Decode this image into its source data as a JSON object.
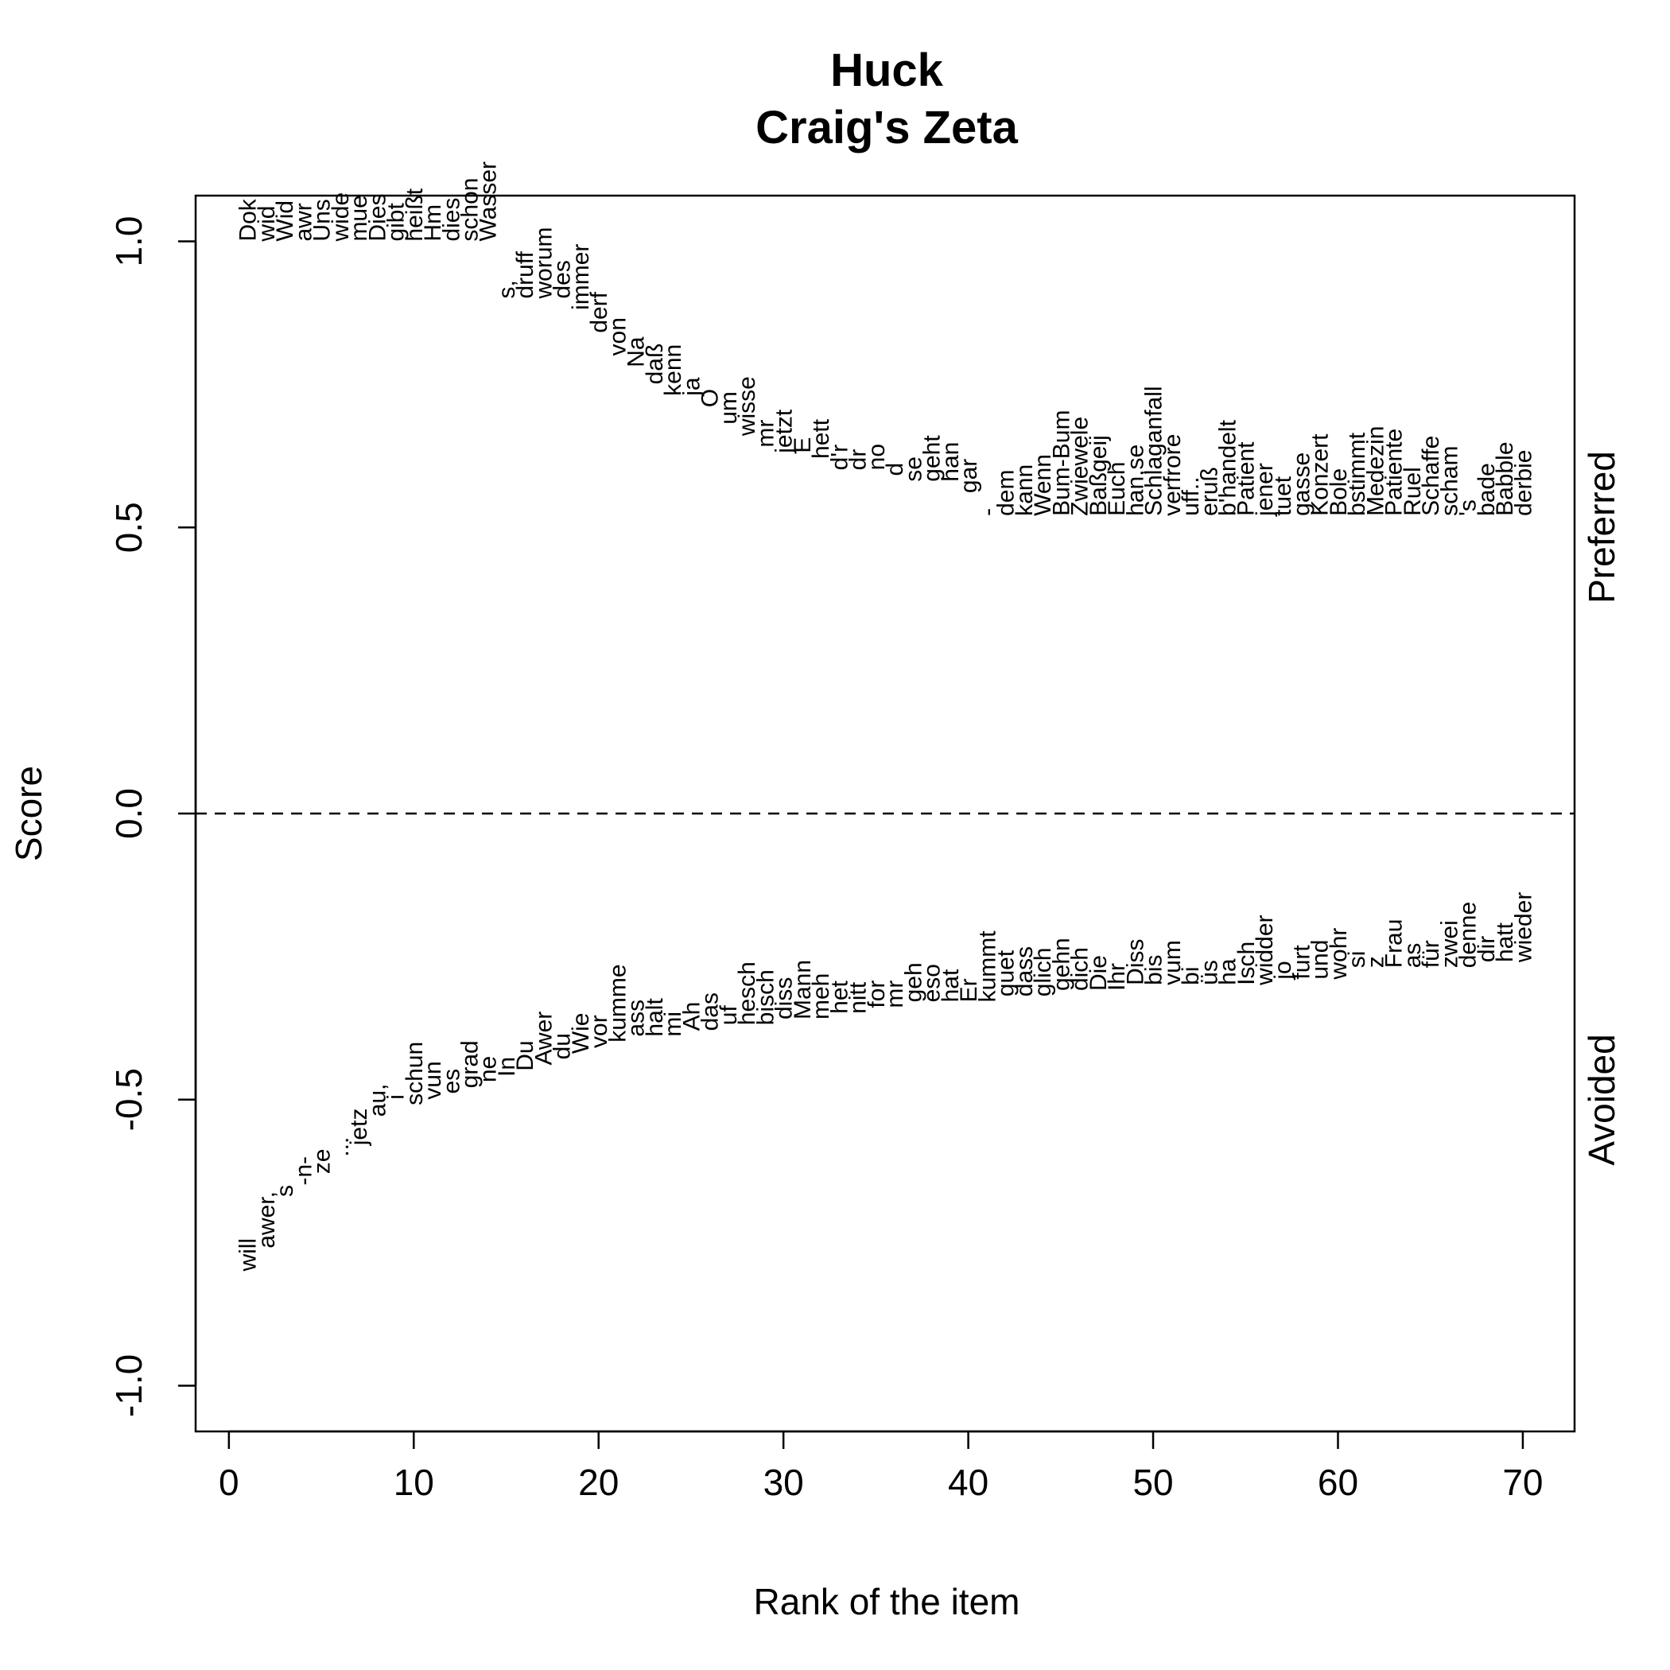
{
  "chart_data": {
    "type": "scatter",
    "title": "Huck",
    "subtitle": "Craig's Zeta",
    "xlabel": "Rank of the item",
    "ylabel": "Score",
    "xlim": [
      -1.8,
      72.8
    ],
    "ylim": [
      -1.08,
      1.08
    ],
    "xticks": [
      0,
      10,
      20,
      30,
      40,
      50,
      60,
      70
    ],
    "yticks": [
      -1.0,
      -0.5,
      0.0,
      0.5,
      1.0
    ],
    "ytick_labels": [
      "-1.0",
      "-0.5",
      "0.0",
      "0.5",
      "1.0"
    ],
    "reference_line": {
      "y": 0,
      "style": "dashed"
    },
    "side_labels": {
      "upper": "Preferred",
      "lower": "Avoided"
    },
    "series": [
      {
        "group": "Preferred",
        "points": [
          {
            "x": 1,
            "y": 1.0,
            "label": "Dok"
          },
          {
            "x": 2,
            "y": 1.0,
            "label": "wid"
          },
          {
            "x": 3,
            "y": 1.0,
            "label": "Wid"
          },
          {
            "x": 4,
            "y": 1.0,
            "label": "awr"
          },
          {
            "x": 5,
            "y": 1.0,
            "label": "Uns"
          },
          {
            "x": 6,
            "y": 1.0,
            "label": "wide"
          },
          {
            "x": 7,
            "y": 1.0,
            "label": "mue"
          },
          {
            "x": 8,
            "y": 1.0,
            "label": "Dies"
          },
          {
            "x": 9,
            "y": 1.0,
            "label": "gibt"
          },
          {
            "x": 10,
            "y": 1.0,
            "label": "heißt"
          },
          {
            "x": 11,
            "y": 1.0,
            "label": "Hm"
          },
          {
            "x": 12,
            "y": 1.0,
            "label": "dies"
          },
          {
            "x": 13,
            "y": 1.0,
            "label": "schon"
          },
          {
            "x": 14,
            "y": 1.0,
            "label": "Wasser"
          },
          {
            "x": 15,
            "y": 0.9,
            "label": "s,"
          },
          {
            "x": 16,
            "y": 0.9,
            "label": "druff"
          },
          {
            "x": 17,
            "y": 0.9,
            "label": "worum"
          },
          {
            "x": 18,
            "y": 0.9,
            "label": "des"
          },
          {
            "x": 19,
            "y": 0.88,
            "label": "immer"
          },
          {
            "x": 20,
            "y": 0.84,
            "label": "derf"
          },
          {
            "x": 21,
            "y": 0.8,
            "label": "von"
          },
          {
            "x": 22,
            "y": 0.78,
            "label": "Na"
          },
          {
            "x": 23,
            "y": 0.75,
            "label": "daß"
          },
          {
            "x": 24,
            "y": 0.73,
            "label": "kenn"
          },
          {
            "x": 25,
            "y": 0.73,
            "label": "ja"
          },
          {
            "x": 26,
            "y": 0.71,
            "label": "O"
          },
          {
            "x": 27,
            "y": 0.68,
            "label": "um"
          },
          {
            "x": 28,
            "y": 0.66,
            "label": "wisse"
          },
          {
            "x": 29,
            "y": 0.64,
            "label": "mr"
          },
          {
            "x": 30,
            "y": 0.63,
            "label": "jetzt"
          },
          {
            "x": 31,
            "y": 0.63,
            "label": "E"
          },
          {
            "x": 32,
            "y": 0.62,
            "label": "hett"
          },
          {
            "x": 33,
            "y": 0.6,
            "label": "d'r"
          },
          {
            "x": 34,
            "y": 0.6,
            "label": "dr"
          },
          {
            "x": 35,
            "y": 0.6,
            "label": "no"
          },
          {
            "x": 36,
            "y": 0.59,
            "label": "d"
          },
          {
            "x": 37,
            "y": 0.58,
            "label": "se"
          },
          {
            "x": 38,
            "y": 0.58,
            "label": "geht"
          },
          {
            "x": 39,
            "y": 0.58,
            "label": "han"
          },
          {
            "x": 40,
            "y": 0.56,
            "label": "gar"
          },
          {
            "x": 41,
            "y": 0.52,
            "label": "-"
          },
          {
            "x": 42,
            "y": 0.52,
            "label": "dem"
          },
          {
            "x": 43,
            "y": 0.52,
            "label": "kann"
          },
          {
            "x": 44,
            "y": 0.52,
            "label": "Wenn"
          },
          {
            "x": 45,
            "y": 0.52,
            "label": "Bum-Bum"
          },
          {
            "x": 46,
            "y": 0.52,
            "label": "Zwiewele"
          },
          {
            "x": 47,
            "y": 0.52,
            "label": "Baßgeij"
          },
          {
            "x": 48,
            "y": 0.52,
            "label": "Euch"
          },
          {
            "x": 49,
            "y": 0.52,
            "label": "han,se"
          },
          {
            "x": 50,
            "y": 0.52,
            "label": "Schlaganfall"
          },
          {
            "x": 51,
            "y": 0.52,
            "label": "verfrore"
          },
          {
            "x": 52,
            "y": 0.52,
            "label": "uff.."
          },
          {
            "x": 53,
            "y": 0.52,
            "label": "eruß"
          },
          {
            "x": 54,
            "y": 0.52,
            "label": "b'handelt"
          },
          {
            "x": 55,
            "y": 0.52,
            "label": "Patient"
          },
          {
            "x": 56,
            "y": 0.52,
            "label": "jener"
          },
          {
            "x": 57,
            "y": 0.52,
            "label": "tuet"
          },
          {
            "x": 58,
            "y": 0.52,
            "label": "gasse"
          },
          {
            "x": 59,
            "y": 0.52,
            "label": "Konzert"
          },
          {
            "x": 60,
            "y": 0.52,
            "label": "Bole"
          },
          {
            "x": 61,
            "y": 0.52,
            "label": "bstimmt"
          },
          {
            "x": 62,
            "y": 0.52,
            "label": "Medezin"
          },
          {
            "x": 63,
            "y": 0.52,
            "label": "Patiente"
          },
          {
            "x": 64,
            "y": 0.52,
            "label": "Ruel"
          },
          {
            "x": 65,
            "y": 0.52,
            "label": "Schaffe"
          },
          {
            "x": 66,
            "y": 0.52,
            "label": "scham"
          },
          {
            "x": 67,
            "y": 0.52,
            "label": "'s"
          },
          {
            "x": 68,
            "y": 0.52,
            "label": "bade"
          },
          {
            "x": 69,
            "y": 0.52,
            "label": "Babble"
          },
          {
            "x": 70,
            "y": 0.52,
            "label": "derbie"
          }
        ]
      },
      {
        "group": "Avoided",
        "points": [
          {
            "x": 1,
            "y": -0.8,
            "label": "will"
          },
          {
            "x": 2,
            "y": -0.76,
            "label": "awer,"
          },
          {
            "x": 3,
            "y": -0.67,
            "label": "s"
          },
          {
            "x": 4,
            "y": -0.65,
            "label": "-n-"
          },
          {
            "x": 5,
            "y": -0.63,
            "label": "ze"
          },
          {
            "x": 6,
            "y": -0.6,
            "label": "..."
          },
          {
            "x": 7,
            "y": -0.58,
            "label": "jetz"
          },
          {
            "x": 8,
            "y": -0.53,
            "label": "au,"
          },
          {
            "x": 9,
            "y": -0.5,
            "label": "i"
          },
          {
            "x": 10,
            "y": -0.51,
            "label": "schun"
          },
          {
            "x": 11,
            "y": -0.5,
            "label": "vun"
          },
          {
            "x": 12,
            "y": -0.49,
            "label": "es"
          },
          {
            "x": 13,
            "y": -0.48,
            "label": "grad"
          },
          {
            "x": 14,
            "y": -0.47,
            "label": "ne"
          },
          {
            "x": 15,
            "y": -0.46,
            "label": "In"
          },
          {
            "x": 16,
            "y": -0.45,
            "label": "Du"
          },
          {
            "x": 17,
            "y": -0.44,
            "label": "Awer"
          },
          {
            "x": 18,
            "y": -0.43,
            "label": "du"
          },
          {
            "x": 19,
            "y": -0.42,
            "label": "Wie"
          },
          {
            "x": 20,
            "y": -0.41,
            "label": "vor"
          },
          {
            "x": 21,
            "y": -0.4,
            "label": "kumme"
          },
          {
            "x": 22,
            "y": -0.39,
            "label": "ass"
          },
          {
            "x": 23,
            "y": -0.39,
            "label": "halt"
          },
          {
            "x": 24,
            "y": -0.39,
            "label": "mi"
          },
          {
            "x": 25,
            "y": -0.38,
            "label": "Ah"
          },
          {
            "x": 26,
            "y": -0.38,
            "label": "das"
          },
          {
            "x": 27,
            "y": -0.37,
            "label": "uf"
          },
          {
            "x": 28,
            "y": -0.37,
            "label": "hesch"
          },
          {
            "x": 29,
            "y": -0.37,
            "label": "bisch"
          },
          {
            "x": 30,
            "y": -0.36,
            "label": "diss"
          },
          {
            "x": 31,
            "y": -0.36,
            "label": "Mann"
          },
          {
            "x": 32,
            "y": -0.36,
            "label": "meh"
          },
          {
            "x": 33,
            "y": -0.35,
            "label": "het"
          },
          {
            "x": 34,
            "y": -0.35,
            "label": "nitt"
          },
          {
            "x": 35,
            "y": -0.34,
            "label": "for"
          },
          {
            "x": 36,
            "y": -0.34,
            "label": "mr"
          },
          {
            "x": 37,
            "y": -0.33,
            "label": "geh"
          },
          {
            "x": 38,
            "y": -0.33,
            "label": "eso"
          },
          {
            "x": 39,
            "y": -0.33,
            "label": "hat"
          },
          {
            "x": 40,
            "y": -0.33,
            "label": "Er"
          },
          {
            "x": 41,
            "y": -0.33,
            "label": "kummt"
          },
          {
            "x": 42,
            "y": -0.32,
            "label": "guet"
          },
          {
            "x": 43,
            "y": -0.32,
            "label": "dass"
          },
          {
            "x": 44,
            "y": -0.32,
            "label": "glich"
          },
          {
            "x": 45,
            "y": -0.31,
            "label": "gehn"
          },
          {
            "x": 46,
            "y": -0.31,
            "label": "dich"
          },
          {
            "x": 47,
            "y": -0.31,
            "label": "Die"
          },
          {
            "x": 48,
            "y": -0.31,
            "label": "Ihr"
          },
          {
            "x": 49,
            "y": -0.3,
            "label": "Diss"
          },
          {
            "x": 50,
            "y": -0.3,
            "label": "bis"
          },
          {
            "x": 51,
            "y": -0.3,
            "label": "vum"
          },
          {
            "x": 52,
            "y": -0.3,
            "label": "bi"
          },
          {
            "x": 53,
            "y": -0.3,
            "label": "üs"
          },
          {
            "x": 54,
            "y": -0.3,
            "label": "ha"
          },
          {
            "x": 55,
            "y": -0.3,
            "label": "Isch"
          },
          {
            "x": 56,
            "y": -0.3,
            "label": "widder"
          },
          {
            "x": 57,
            "y": -0.29,
            "label": "jo"
          },
          {
            "x": 58,
            "y": -0.29,
            "label": "furt"
          },
          {
            "x": 59,
            "y": -0.29,
            "label": "und"
          },
          {
            "x": 60,
            "y": -0.29,
            "label": "wohr"
          },
          {
            "x": 61,
            "y": -0.27,
            "label": "si"
          },
          {
            "x": 62,
            "y": -0.27,
            "label": "z"
          },
          {
            "x": 63,
            "y": -0.27,
            "label": "Frau"
          },
          {
            "x": 64,
            "y": -0.27,
            "label": "as"
          },
          {
            "x": 65,
            "y": -0.27,
            "label": "für"
          },
          {
            "x": 66,
            "y": -0.27,
            "label": "zwei"
          },
          {
            "x": 67,
            "y": -0.27,
            "label": "denne"
          },
          {
            "x": 68,
            "y": -0.26,
            "label": "dir"
          },
          {
            "x": 69,
            "y": -0.26,
            "label": "hatt"
          },
          {
            "x": 70,
            "y": -0.26,
            "label": "wieder"
          }
        ]
      }
    ]
  }
}
